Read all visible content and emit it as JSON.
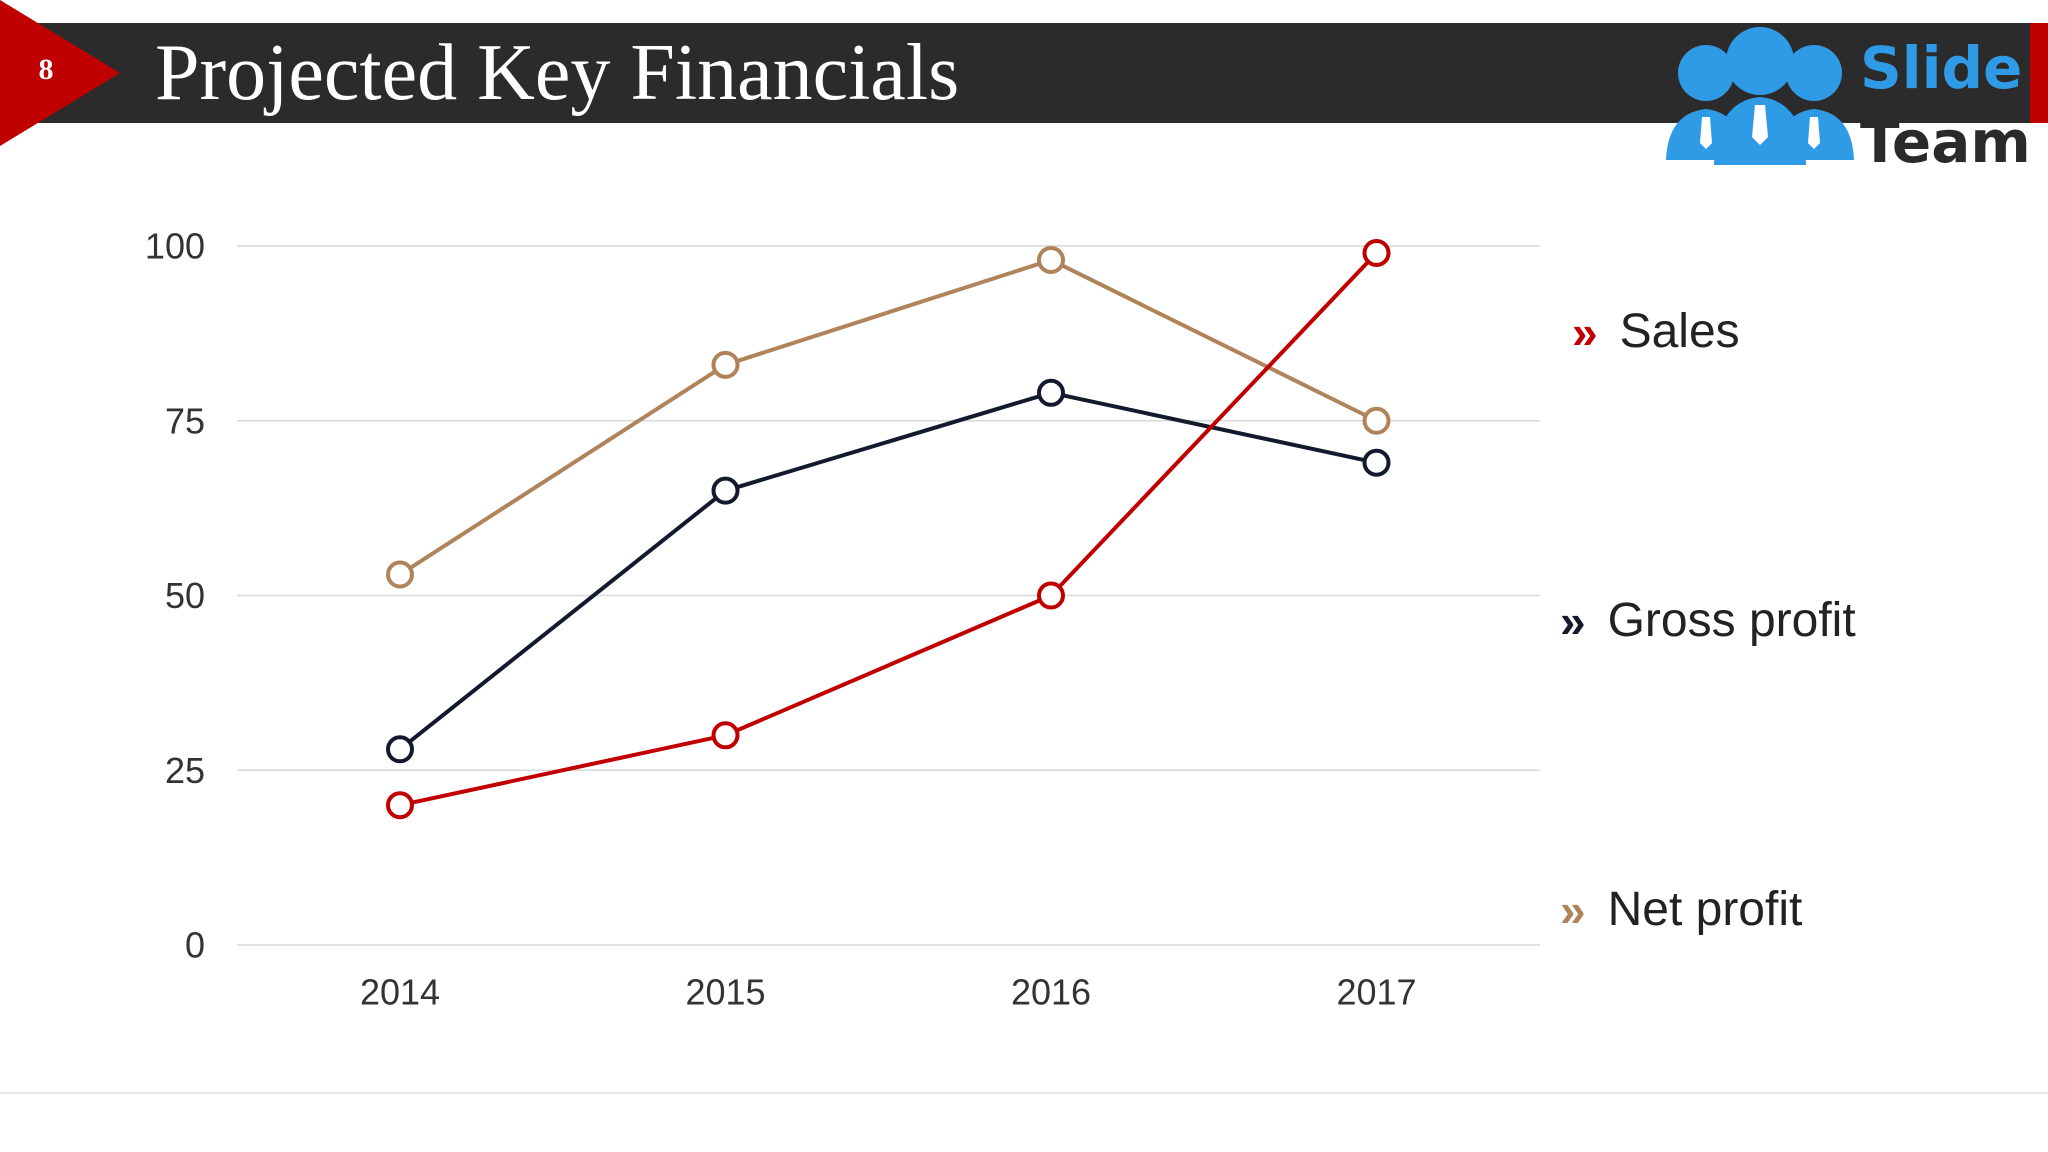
{
  "slide": {
    "number": "8",
    "title": "Projected Key Financials"
  },
  "logo": {
    "line1": "Slide",
    "line2": "Team",
    "colors": {
      "blue": "#2f9be6",
      "dark": "#2a2a2a"
    }
  },
  "colors": {
    "header": "#2b2b2b",
    "accent": "#c00000"
  },
  "chart_data": {
    "type": "line",
    "x": [
      "2014",
      "2015",
      "2016",
      "2017"
    ],
    "ylim": [
      0,
      100
    ],
    "yticks": [
      0,
      25,
      50,
      75,
      100
    ],
    "grid": true,
    "legend_position": "right",
    "series": [
      {
        "name": "Sales",
        "values": [
          20,
          30,
          50,
          99
        ],
        "color": "#c00000"
      },
      {
        "name": "Gross profit",
        "values": [
          28,
          65,
          79,
          69
        ],
        "color": "#141a2e"
      },
      {
        "name": "Net profit",
        "values": [
          53,
          83,
          98,
          75
        ],
        "color": "#b0835a"
      }
    ]
  }
}
